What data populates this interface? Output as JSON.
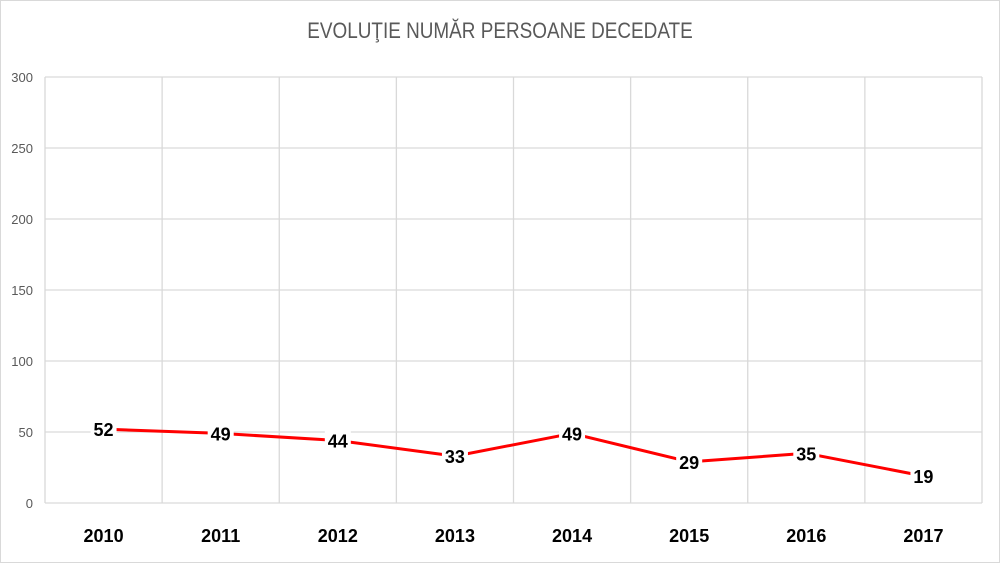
{
  "chart_data": {
    "type": "line",
    "title": "EVOLUŢIE NUMĂR PERSOANE DECEDATE",
    "categories": [
      "2010",
      "2011",
      "2012",
      "2013",
      "2014",
      "2015",
      "2016",
      "2017"
    ],
    "series": [
      {
        "values": [
          52,
          49,
          44,
          33,
          49,
          29,
          35,
          19
        ],
        "color": "#ff0000"
      }
    ],
    "ylim": [
      0,
      300
    ],
    "yticks": [
      0,
      50,
      100,
      150,
      200,
      250,
      300
    ],
    "grid": true,
    "data_labels": true
  }
}
